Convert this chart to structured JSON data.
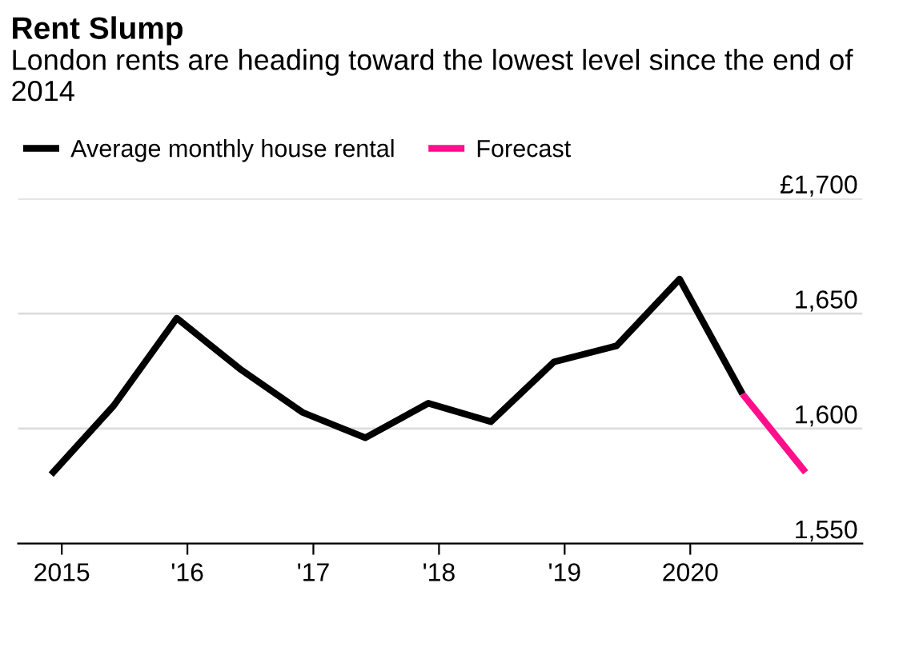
{
  "chart_data": {
    "type": "line",
    "title": "Rent Slump",
    "subtitle": "London rents are heading toward the lowest level since the end of 2014",
    "series": [
      {
        "name": "Average monthly house rental",
        "color": "#000000",
        "x": [
          "2014-12",
          "2015-06",
          "2015-12",
          "2016-06",
          "2016-12",
          "2017-06",
          "2017-12",
          "2018-06",
          "2018-12",
          "2019-06",
          "2019-12",
          "2020-06"
        ],
        "values": [
          1580,
          1610,
          1648,
          1626,
          1607,
          1596,
          1611,
          1603,
          1629,
          1636,
          1665,
          1615
        ]
      },
      {
        "name": "Forecast",
        "color": "#ff0f8b",
        "x": [
          "2020-06",
          "2020-12"
        ],
        "values": [
          1615,
          1581
        ]
      }
    ],
    "xlim": [
      "2014-08-27",
      "2021-05-15"
    ],
    "xticks": [
      {
        "value": "2015-01-01",
        "label": "2015"
      },
      {
        "value": "2016-01-01",
        "label": "'16"
      },
      {
        "value": "2017-01-01",
        "label": "'17"
      },
      {
        "value": "2018-01-01",
        "label": "'18"
      },
      {
        "value": "2019-01-01",
        "label": "'19"
      },
      {
        "value": "2020-01-01",
        "label": "2020"
      }
    ],
    "ylim": [
      1550,
      1700
    ],
    "yticks": [
      {
        "value": 1550,
        "label": "1,550"
      },
      {
        "value": 1600,
        "label": "1,600"
      },
      {
        "value": 1650,
        "label": "1,650"
      },
      {
        "value": 1700,
        "label": "£1,700"
      }
    ],
    "grid": "y",
    "legend": "top left",
    "marker": "none",
    "line_style": "solid"
  }
}
